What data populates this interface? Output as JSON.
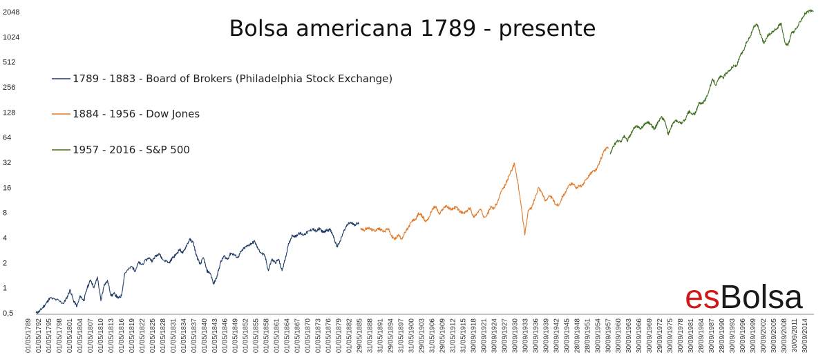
{
  "chart_data": {
    "type": "line",
    "title": "Bolsa americana 1789 - presente",
    "xlabel": "",
    "ylabel": "",
    "y_scale": "log2",
    "ylim": [
      0.5,
      2048
    ],
    "y_ticks": [
      "0,5",
      "1",
      "2",
      "4",
      "8",
      "16",
      "32",
      "64",
      "128",
      "256",
      "512",
      "1024",
      "2048"
    ],
    "y_tick_values": [
      0.5,
      1,
      2,
      4,
      8,
      16,
      32,
      64,
      128,
      256,
      512,
      1024,
      2048
    ],
    "x_tick_labels": [
      "01/05/1789",
      "01/05/1792",
      "01/05/1795",
      "01/05/1798",
      "01/05/1801",
      "01/05/1804",
      "01/05/1807",
      "01/05/1810",
      "01/05/1813",
      "01/05/1816",
      "01/05/1819",
      "01/05/1822",
      "01/05/1825",
      "01/05/1828",
      "01/05/1831",
      "01/05/1834",
      "01/05/1837",
      "01/05/1840",
      "01/05/1843",
      "01/05/1846",
      "01/05/1849",
      "01/05/1852",
      "01/05/1855",
      "01/05/1858",
      "01/05/1861",
      "01/05/1864",
      "01/05/1867",
      "01/05/1870",
      "01/05/1873",
      "01/05/1876",
      "01/05/1879",
      "01/05/1882",
      "29/05/1885",
      "31/05/1888",
      "31/05/1891",
      "29/05/1894",
      "31/05/1897",
      "31/05/1900",
      "29/05/1903",
      "31/05/1906",
      "29/05/1909",
      "31/05/1912",
      "31/05/1915",
      "30/09/1918",
      "30/09/1921",
      "30/09/1924",
      "30/09/1927",
      "30/09/1930",
      "30/09/1933",
      "30/09/1936",
      "30/09/1939",
      "30/09/1942",
      "30/09/1945",
      "28/09/1948",
      "28/09/1951",
      "30/09/1954",
      "30/09/1957",
      "30/09/1960",
      "30/09/1963",
      "30/09/1966",
      "30/09/1969",
      "29/09/1972",
      "30/09/1975",
      "30/09/1978",
      "30/09/1981",
      "28/09/1984",
      "30/09/1987",
      "28/09/1990",
      "30/09/1993",
      "30/09/1996",
      "30/09/1999",
      "30/09/2002",
      "30/09/2005",
      "30/09/2008",
      "30/09/2011",
      "30/09/2014"
    ],
    "grid": false,
    "legend_position": "top-left",
    "series": [
      {
        "name": "1789 - 1883 - Board of Brokers (Philadelphia Stock Exchange)",
        "color": "#1f3b64",
        "x": [
          1789,
          1790,
          1791,
          1792,
          1793,
          1795,
          1797,
          1798,
          1799,
          1800,
          1801,
          1802,
          1803,
          1804,
          1805,
          1806,
          1807,
          1808,
          1809,
          1810,
          1811,
          1812,
          1813,
          1814,
          1815,
          1817,
          1818,
          1819,
          1820,
          1822,
          1823,
          1824,
          1825,
          1826,
          1828,
          1829,
          1830,
          1831,
          1832,
          1833,
          1834,
          1835,
          1836,
          1837,
          1838,
          1839,
          1840,
          1841,
          1842,
          1843,
          1844,
          1845,
          1846,
          1847,
          1848,
          1849,
          1850,
          1851,
          1852,
          1853,
          1854,
          1855,
          1856,
          1857,
          1858,
          1859,
          1860,
          1861,
          1862,
          1863,
          1864,
          1865,
          1866,
          1867,
          1868,
          1869,
          1870,
          1871,
          1872,
          1873,
          1874,
          1875,
          1876,
          1877,
          1878,
          1879,
          1880,
          1881,
          1882,
          1883
        ],
        "values": [
          0.5,
          0.52,
          0.58,
          0.65,
          0.75,
          0.72,
          0.65,
          0.75,
          0.95,
          0.7,
          0.6,
          0.8,
          0.7,
          1.0,
          1.25,
          1.0,
          1.35,
          0.7,
          1.1,
          1.2,
          0.8,
          0.85,
          0.75,
          0.8,
          1.5,
          1.8,
          1.6,
          2.0,
          1.9,
          2.3,
          2.1,
          2.4,
          2.6,
          2.2,
          2.0,
          2.3,
          2.5,
          2.9,
          2.6,
          3.2,
          3.8,
          3.5,
          2.4,
          1.9,
          2.3,
          1.6,
          1.5,
          1.1,
          1.4,
          2.0,
          2.4,
          2.2,
          2.6,
          2.5,
          2.3,
          2.7,
          3.0,
          3.2,
          3.4,
          3.6,
          2.9,
          2.6,
          2.4,
          1.6,
          2.2,
          2.0,
          2.2,
          1.6,
          2.3,
          3.4,
          4.3,
          4.1,
          4.6,
          4.3,
          4.5,
          4.8,
          5.1,
          4.7,
          5.2,
          4.6,
          4.9,
          5.0,
          4.2,
          3.1,
          3.6,
          4.7,
          5.6,
          6.1,
          5.7,
          5.9
        ]
      },
      {
        "name": "1884 - 1956 - Dow Jones",
        "color": "#e07a2a",
        "x": [
          1884,
          1885,
          1886,
          1887,
          1888,
          1889,
          1890,
          1891,
          1892,
          1893,
          1894,
          1895,
          1896,
          1897,
          1898,
          1899,
          1900,
          1901,
          1902,
          1903,
          1904,
          1905,
          1906,
          1907,
          1908,
          1909,
          1910,
          1911,
          1912,
          1913,
          1914,
          1915,
          1916,
          1917,
          1918,
          1919,
          1920,
          1921,
          1922,
          1923,
          1924,
          1925,
          1926,
          1927,
          1928,
          1929,
          1930,
          1931,
          1932,
          1933,
          1934,
          1935,
          1936,
          1937,
          1938,
          1939,
          1940,
          1941,
          1942,
          1943,
          1944,
          1945,
          1946,
          1947,
          1948,
          1949,
          1950,
          1951,
          1952,
          1953,
          1954,
          1955,
          1956
        ],
        "values": [
          5.2,
          4.9,
          5.3,
          5.0,
          4.8,
          5.1,
          5.0,
          4.7,
          5.2,
          4.2,
          3.8,
          4.3,
          3.9,
          4.6,
          5.3,
          6.3,
          6.6,
          7.8,
          7.3,
          6.2,
          7.0,
          8.9,
          9.4,
          7.6,
          8.8,
          9.7,
          8.8,
          8.9,
          9.3,
          8.2,
          7.8,
          8.2,
          9.2,
          7.0,
          7.8,
          8.8,
          7.2,
          7.5,
          9.3,
          9.0,
          10.5,
          14.0,
          16.0,
          20.0,
          25.0,
          31.0,
          18.0,
          9.5,
          4.3,
          8.5,
          9.0,
          12.0,
          16.0,
          14.0,
          11.0,
          12.5,
          12.0,
          10.0,
          9.8,
          12.5,
          14.0,
          17.0,
          18.0,
          16.0,
          16.5,
          17.0,
          20.0,
          23.0,
          25.0,
          26.0,
          33.0,
          42.0,
          48.0
        ]
      },
      {
        "name": "1957 - 2016 - S&P 500",
        "color": "#3e6e1e",
        "x": [
          1957,
          1958,
          1959,
          1960,
          1961,
          1962,
          1963,
          1964,
          1965,
          1966,
          1967,
          1968,
          1969,
          1970,
          1971,
          1972,
          1973,
          1974,
          1975,
          1976,
          1977,
          1978,
          1979,
          1980,
          1981,
          1982,
          1983,
          1984,
          1985,
          1986,
          1987,
          1988,
          1989,
          1990,
          1991,
          1992,
          1993,
          1994,
          1995,
          1996,
          1997,
          1998,
          1999,
          2000,
          2001,
          2002,
          2003,
          2004,
          2005,
          2006,
          2007,
          2008,
          2009,
          2010,
          2011,
          2012,
          2013,
          2014,
          2015,
          2016
        ],
        "values": [
          40.0,
          50.0,
          58.0,
          56.0,
          66.0,
          58.0,
          70.0,
          82.0,
          88.0,
          80.0,
          92.0,
          98.0,
          90.0,
          80.0,
          98.0,
          112.0,
          100.0,
          68.0,
          88.0,
          102.0,
          96.0,
          95.0,
          105.0,
          130.0,
          120.0,
          125.0,
          165.0,
          165.0,
          185.0,
          240.0,
          320.0,
          270.0,
          340.0,
          330.0,
          380.0,
          410.0,
          455.0,
          460.0,
          600.0,
          700.0,
          900.0,
          1050.0,
          1350.0,
          1450.0,
          1100.0,
          850.0,
          1050.0,
          1130.0,
          1220.0,
          1330.0,
          1500.0,
          900.0,
          800.0,
          1120.0,
          1200.0,
          1400.0,
          1700.0,
          1950.0,
          2050.0,
          2100.0
        ]
      }
    ]
  },
  "logo": {
    "prefix": "es",
    "suffix": "Bolsa"
  }
}
